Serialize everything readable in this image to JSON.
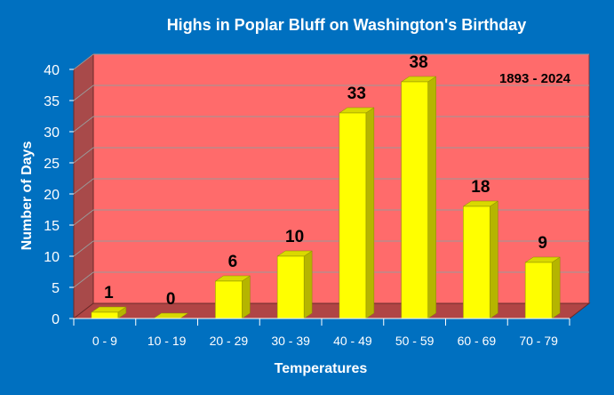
{
  "chart_data": {
    "type": "bar",
    "title": "Highs in Poplar Bluff on Washington's Birthday",
    "annotation": "1893 - 2024",
    "xlabel": "Temperatures",
    "ylabel": "Number of Days",
    "categories": [
      "0 - 9",
      "10 - 19",
      "20 - 29",
      "30 - 39",
      "40 - 49",
      "50 - 59",
      "60 - 69",
      "70 - 79"
    ],
    "values": [
      1,
      0,
      6,
      10,
      33,
      38,
      18,
      9
    ],
    "data_labels": [
      "1",
      "0",
      "6",
      "10",
      "33",
      "38",
      "18",
      "9"
    ],
    "ylim": [
      0,
      40
    ],
    "yticks": [
      0,
      5,
      10,
      15,
      20,
      25,
      30,
      35,
      40
    ],
    "grid": true,
    "legend": "none",
    "colors": {
      "background": "#0070C0",
      "plot_area": "#FF6B6B",
      "side_wall": "#A84A4A",
      "floor": "#B04545",
      "bar_front": "#FFFF00",
      "bar_side": "#B5B500",
      "bar_top": "#D9D900",
      "gridline": "#9A9A9A",
      "text_light": "#FFFFFF",
      "text_dark": "#000000"
    }
  }
}
